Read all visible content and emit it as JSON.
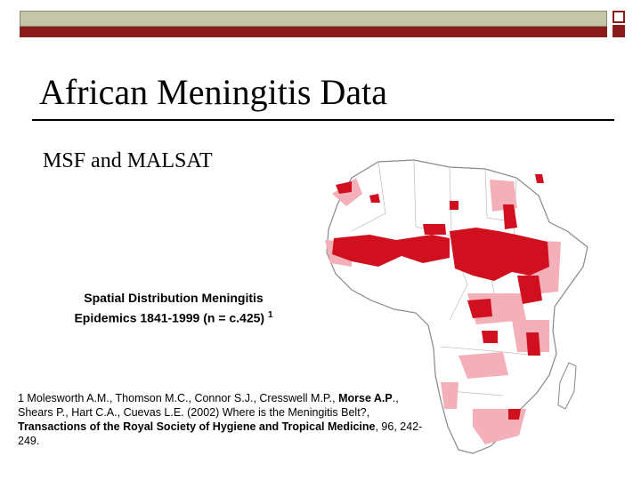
{
  "slide": {
    "title": "African Meningitis Data",
    "subtitle": "MSF and MALSAT",
    "caption_line1": "Spatial Distribution Meningitis",
    "caption_line2": "Epidemics 1841-1999 (n = c.425)",
    "caption_sup": "1",
    "reference": {
      "part1": "1 Molesworth A.M., Thomson M.C., Connor S.J., Cresswell M.P., ",
      "part2_bold": "Morse A.P",
      "part3": "., Shears P., Hart C.A., Cuevas L.E. (2002) Where is the Meningitis Belt?, ",
      "part4_bold": "Transactions of the Royal Society of Hygiene and Tropical Medicine",
      "part5": ", 96, 242-249."
    }
  },
  "colors": {
    "accent_red": "#8b1a1a",
    "bar_gray": "#c5c5a8",
    "epidemic_dark": "#d0101f",
    "epidemic_light": "#f4b0b8"
  },
  "map_icon": "africa-map"
}
